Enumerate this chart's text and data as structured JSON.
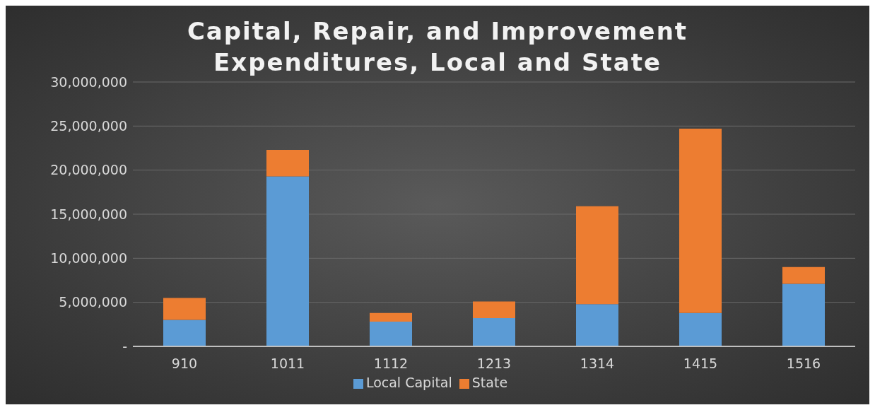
{
  "chart_data": {
    "type": "bar",
    "title": "Capital, Repair, and Improvement Expenditures, Local and State",
    "categories": [
      "910",
      "1011",
      "1112",
      "1213",
      "1314",
      "1415",
      "1516"
    ],
    "stacked": true,
    "series": [
      {
        "name": "Local Capital",
        "color": "#5b9bd5",
        "values": [
          3000000,
          19300000,
          2800000,
          3200000,
          4800000,
          3800000,
          7100000
        ]
      },
      {
        "name": "State",
        "color": "#ed7d31",
        "values": [
          2500000,
          3000000,
          1000000,
          1900000,
          11100000,
          20900000,
          1900000
        ]
      }
    ],
    "ylim": [
      0,
      30000000
    ],
    "yticks": [
      {
        "value": 0,
        "label": "-"
      },
      {
        "value": 5000000,
        "label": "5,000,000"
      },
      {
        "value": 10000000,
        "label": "10,000,000"
      },
      {
        "value": 15000000,
        "label": "15,000,000"
      },
      {
        "value": 20000000,
        "label": "20,000,000"
      },
      {
        "value": 25000000,
        "label": "25,000,000"
      },
      {
        "value": 30000000,
        "label": "30,000,000"
      }
    ],
    "grid": "y",
    "legend": "bottom"
  }
}
